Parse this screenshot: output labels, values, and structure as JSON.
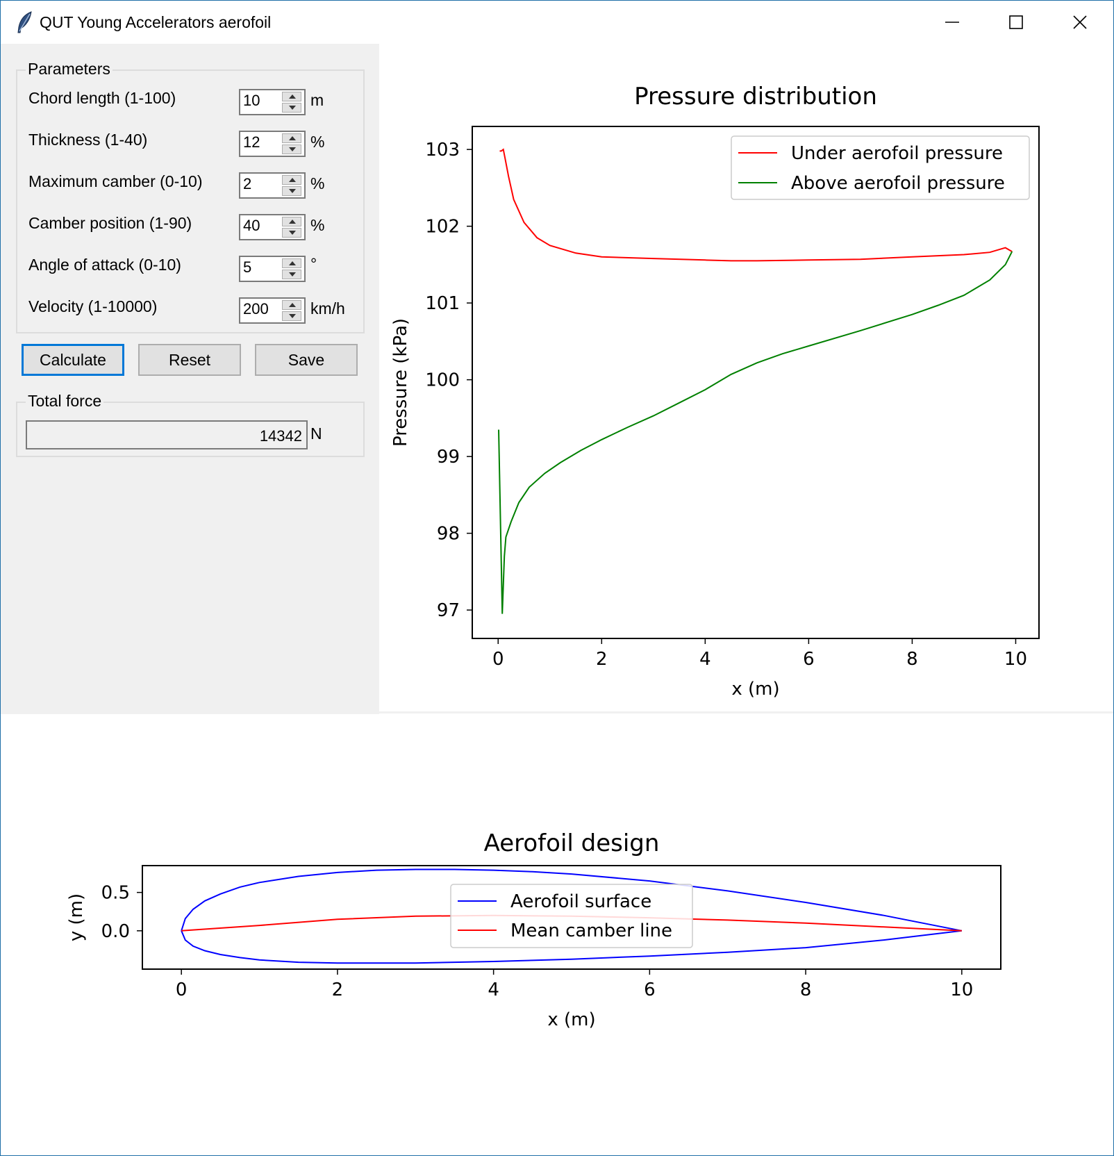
{
  "window": {
    "title": "QUT Young Accelerators aerofoil"
  },
  "parameters": {
    "group_title": "Parameters",
    "fields": [
      {
        "label": "Chord length (1-100)",
        "value": "10",
        "unit": "m"
      },
      {
        "label": "Thickness (1-40)",
        "value": "12",
        "unit": "%"
      },
      {
        "label": "Maximum camber (0-10)",
        "value": "2",
        "unit": "%"
      },
      {
        "label": "Camber position (1-90)",
        "value": "40",
        "unit": "%"
      },
      {
        "label": "Angle of attack (0-10)",
        "value": "5",
        "unit": "°"
      },
      {
        "label": "Velocity (1-10000)",
        "value": "200",
        "unit": "km/h"
      }
    ]
  },
  "buttons": {
    "calculate": "Calculate",
    "reset": "Reset",
    "save": "Save"
  },
  "total_force": {
    "group_title": "Total force",
    "value": "14342",
    "unit": "N"
  },
  "colors": {
    "under_pressure": "#ff0000",
    "above_pressure": "#008000",
    "surface": "#0000ff",
    "camber": "#ff0000",
    "focus": "#0078d7"
  },
  "chart_data": [
    {
      "type": "line",
      "title": "Pressure distribution",
      "xlabel": "x (m)",
      "ylabel": "Pressure (kPa)",
      "xlim": [
        -0.5,
        10.45
      ],
      "ylim": [
        96.63,
        103.3
      ],
      "xticks": [
        0,
        2,
        4,
        6,
        8,
        10
      ],
      "yticks": [
        97,
        98,
        99,
        100,
        101,
        102,
        103
      ],
      "legend": "top-right",
      "grid": false,
      "series": [
        {
          "name": "Under aerofoil pressure",
          "color": "#ff0000",
          "x": [
            0.03,
            0.06,
            0.1,
            0.13,
            0.2,
            0.3,
            0.5,
            0.75,
            1.0,
            1.5,
            2.0,
            3.0,
            4.0,
            4.5,
            5.0,
            6.0,
            7.0,
            8.0,
            9.0,
            9.5,
            9.8,
            9.93
          ],
          "y": [
            102.98,
            102.98,
            103.0,
            102.9,
            102.65,
            102.35,
            102.05,
            101.85,
            101.75,
            101.65,
            101.6,
            101.58,
            101.56,
            101.55,
            101.55,
            101.56,
            101.57,
            101.6,
            101.63,
            101.66,
            101.72,
            101.67
          ]
        },
        {
          "name": "Above aerofoil pressure",
          "color": "#008000",
          "x": [
            0.01,
            0.08,
            0.12,
            0.15,
            0.25,
            0.4,
            0.6,
            0.9,
            1.2,
            1.6,
            2.0,
            2.5,
            3.0,
            3.5,
            4.0,
            4.5,
            5.0,
            5.5,
            6.0,
            7.0,
            8.0,
            8.5,
            9.0,
            9.5,
            9.8,
            9.93
          ],
          "y": [
            99.35,
            96.95,
            97.7,
            97.95,
            98.15,
            98.4,
            98.6,
            98.78,
            98.92,
            99.08,
            99.22,
            99.38,
            99.53,
            99.7,
            99.87,
            100.07,
            100.22,
            100.34,
            100.44,
            100.64,
            100.85,
            100.97,
            101.1,
            101.3,
            101.5,
            101.67
          ]
        }
      ]
    },
    {
      "type": "line",
      "title": "Aerofoil design",
      "xlabel": "x (m)",
      "ylabel": "y (m)",
      "xlim": [
        -0.5,
        10.5
      ],
      "ylim": [
        -0.5,
        0.85
      ],
      "xticks": [
        0,
        2,
        4,
        6,
        8,
        10
      ],
      "yticks": [
        0.0,
        0.5
      ],
      "legend": "top-center",
      "grid": false,
      "series": [
        {
          "name": "Aerofoil surface",
          "color": "#0000ff",
          "x": [
            0,
            0.05,
            0.15,
            0.3,
            0.5,
            0.75,
            1.0,
            1.5,
            2.0,
            2.5,
            3.0,
            3.5,
            4.0,
            4.5,
            5.0,
            6.0,
            7.0,
            8.0,
            9.0,
            10.0,
            9.0,
            8.0,
            7.0,
            6.0,
            5.0,
            4.0,
            3.0,
            2.5,
            2.0,
            1.5,
            1.0,
            0.75,
            0.5,
            0.3,
            0.15,
            0.05,
            0
          ],
          "y": [
            0,
            0.16,
            0.28,
            0.39,
            0.48,
            0.57,
            0.63,
            0.71,
            0.76,
            0.79,
            0.8,
            0.8,
            0.79,
            0.77,
            0.74,
            0.65,
            0.52,
            0.37,
            0.2,
            0,
            -0.12,
            -0.22,
            -0.28,
            -0.33,
            -0.37,
            -0.4,
            -0.42,
            -0.42,
            -0.42,
            -0.41,
            -0.38,
            -0.35,
            -0.31,
            -0.26,
            -0.2,
            -0.12,
            0
          ]
        },
        {
          "name": "Mean camber line",
          "color": "#ff0000",
          "x": [
            0,
            1,
            2,
            3,
            4,
            5,
            6,
            7,
            8,
            9,
            10
          ],
          "y": [
            0,
            0.07,
            0.15,
            0.19,
            0.2,
            0.19,
            0.17,
            0.14,
            0.1,
            0.05,
            0
          ]
        }
      ]
    }
  ]
}
